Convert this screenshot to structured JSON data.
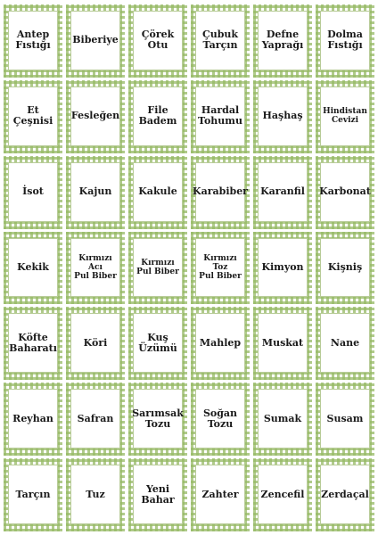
{
  "labels": [
    [
      "Antep\nFıstığı",
      "Biberiye",
      "Çörek Otu",
      "Çubuk\nTarçın",
      "Defne\nYaprağı",
      "Dolma\nFıstığı"
    ],
    [
      "Et Çeşnisi",
      "Fesleğen",
      "File Badem",
      "Hardal\nTohumu",
      "Haşhaş",
      "Hindistan\nCevizi"
    ],
    [
      "İsot",
      "Kajun",
      "Kakule",
      "Karabiber",
      "Karanfil",
      "Karbonat"
    ],
    [
      "Kekik",
      "Kırmızı Acı\nPul Biber",
      "Kırmızı\nPul Biber",
      "Kırmızı Toz\nPul Biber",
      "Kimyon",
      "Kişniş"
    ],
    [
      "Köfte\nBaharatı",
      "Köri",
      "Kuş\nÜzümü",
      "Mahlep",
      "Muskat",
      "Nane"
    ],
    [
      "Reyhan",
      "Safran",
      "Sarımsak\nTozu",
      "Soğan\nTozu",
      "Sumak",
      "Susam"
    ],
    [
      "Tarçın",
      "Tuz",
      "Yeni\nBahar",
      "Zahter",
      "Zencefil",
      "Zerdaçal"
    ]
  ],
  "colors": {
    "pattern_green": "#96b964",
    "border_green": "#b8cc98",
    "text": "#1a1a1a"
  }
}
